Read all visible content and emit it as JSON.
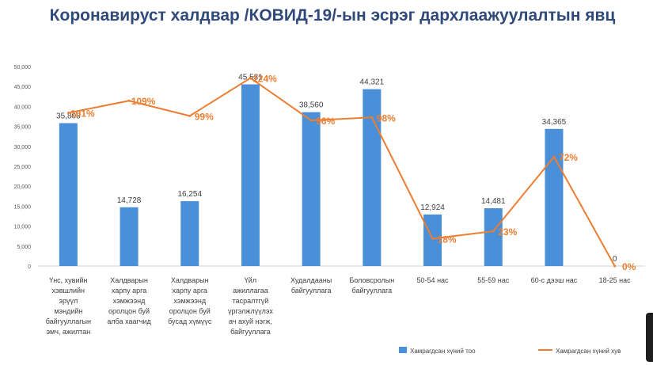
{
  "chart_data": {
    "type": "bar",
    "title": "Коронавируст халдвар /КОВИД-19/-ын эсрэг дархлаажуулалтын явц",
    "categories": [
      [
        "Үнс, хувийн",
        "хэвшлийн",
        "эрүүл",
        "мэндийн",
        "байгууллагын",
        "эмч, ажилтан"
      ],
      [
        "Халдварын",
        "харпу арга",
        "хэмжээнд",
        "оролцон буй",
        "алба хаагчид"
      ],
      [
        "Халдварын",
        "харпу арга",
        "хэмжээнд",
        "оролцон буй",
        "бусад хүмүүс"
      ],
      [
        "Үйл",
        "ажиллагаа",
        "тасралтгүй",
        "үргэлжлүүлэх",
        "ач ахуй нэгж,",
        "байгууллага"
      ],
      [
        "Худалдааны",
        "байгууллага"
      ],
      [
        "Боловсролын",
        "байгууллага"
      ],
      [
        "50-54 нас"
      ],
      [
        "55-59 нас"
      ],
      [
        "60-с дээш нас"
      ],
      [
        "18-25 нас"
      ]
    ],
    "ylim": [
      0,
      50000
    ],
    "yticks": [
      "0",
      "5,000",
      "10,000",
      "15,000",
      "20,000",
      "25,000",
      "30,000",
      "35,000",
      "40,000",
      "45,000",
      "50,000"
    ],
    "series": [
      {
        "name": "Хамрагдсан хүний тоо",
        "type": "bar",
        "color": "#4a90d9",
        "values": [
          35808,
          14728,
          16254,
          45531,
          38560,
          44321,
          12924,
          14481,
          34365,
          0
        ],
        "labels": [
          "35,808",
          "14,728",
          "16,254",
          "45,531",
          "38,560",
          "44,321",
          "12,924",
          "14,481",
          "34,365",
          "0"
        ]
      },
      {
        "name": "Хамрагдсан хүний хув",
        "type": "line",
        "color": "#ed7d31",
        "values": [
          101,
          109,
          99,
          124,
          96,
          98,
          18,
          23,
          72,
          0
        ],
        "labels": [
          "101%",
          "109%",
          "99%",
          "124%",
          "96%",
          "98%",
          "18%",
          "23%",
          "72%",
          "0%"
        ]
      }
    ],
    "grid": false,
    "legend_position": "bottom"
  }
}
